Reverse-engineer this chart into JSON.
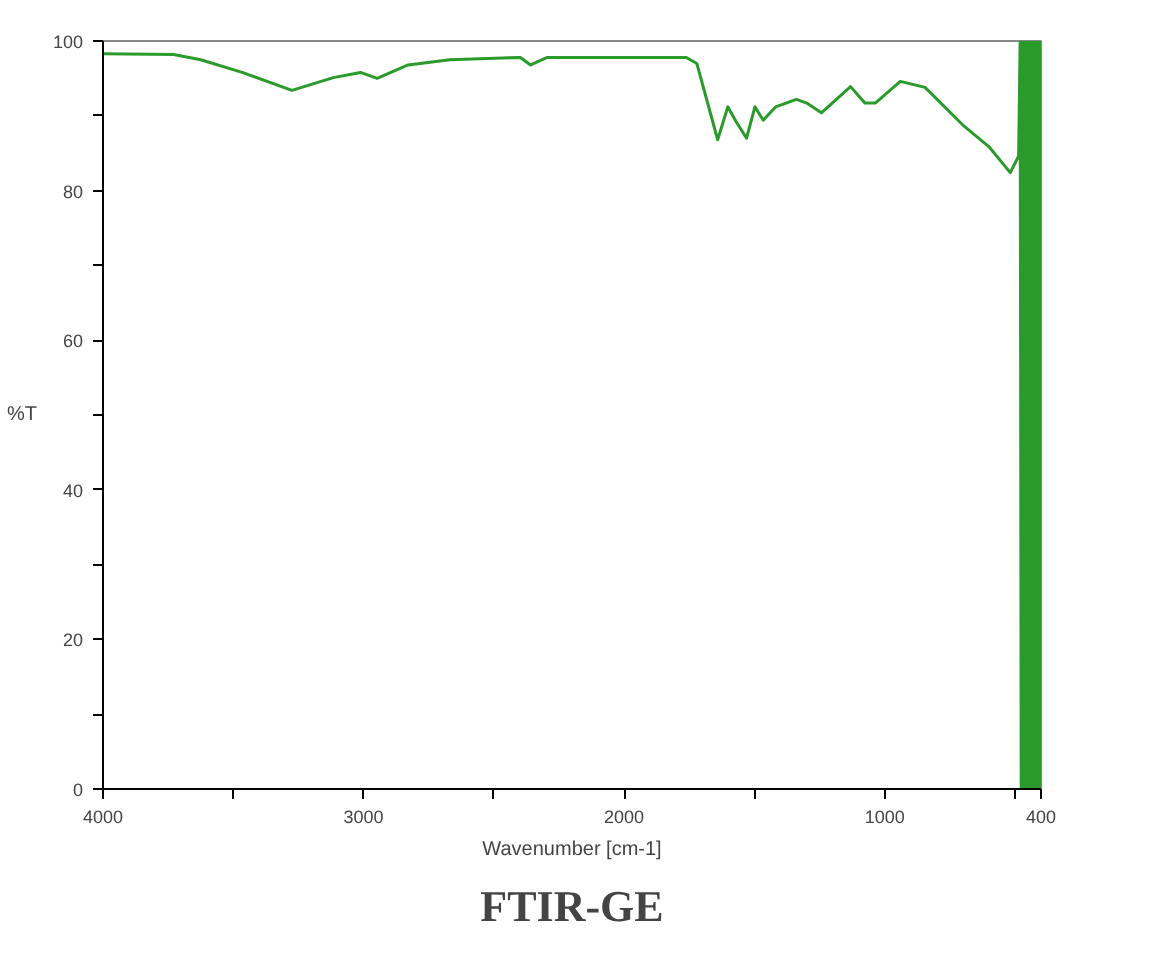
{
  "chart_data": {
    "type": "line",
    "title": "FTIR-GE",
    "xlabel": "Wavenumber [cm-1]",
    "ylabel": "%T",
    "xlim": [
      4000,
      400
    ],
    "ylim": [
      0,
      100
    ],
    "xticks": [
      4000,
      {
        "value": 3500,
        "label": null
      },
      3000,
      {
        "value": 2500,
        "label": null
      },
      2000,
      {
        "value": 1500,
        "label": null
      },
      1000,
      {
        "value": 500,
        "label": null
      },
      400
    ],
    "yticks": [
      0,
      {
        "value": 10,
        "label": null
      },
      20,
      {
        "value": 30,
        "label": null
      },
      40,
      {
        "value": 50,
        "label": null
      },
      60,
      {
        "value": 70,
        "label": null
      },
      80,
      {
        "value": 90,
        "label": null
      },
      100
    ],
    "grid": false,
    "marker": "none",
    "line_style": "solid",
    "series": [
      {
        "color": "#2a9a2a",
        "x": [
          4000,
          3729,
          3625,
          3466,
          3275,
          3116,
          3012,
          2948,
          2829,
          2669,
          2398,
          2359,
          2295,
          1761,
          1721,
          1641,
          1602,
          1570,
          1530,
          1498,
          1466,
          1418,
          1339,
          1299,
          1243,
          1131,
          1076,
          1036,
          940,
          845,
          701,
          598,
          518,
          486,
          480,
          476,
          472,
          468,
          464,
          460,
          456,
          452,
          448,
          444,
          440,
          436,
          432,
          428,
          424,
          420,
          416,
          412,
          408,
          404,
          400
        ],
        "values": [
          98.3,
          98.2,
          97.5,
          95.8,
          93.4,
          95.1,
          95.8,
          95.0,
          96.8,
          97.5,
          97.8,
          96.8,
          97.8,
          97.8,
          97.0,
          86.8,
          91.2,
          89.2,
          87.0,
          91.2,
          89.4,
          91.2,
          92.2,
          91.7,
          90.4,
          93.9,
          91.7,
          91.7,
          94.6,
          93.8,
          88.8,
          85.8,
          82.4,
          84.6,
          100,
          0,
          100,
          0,
          100,
          0,
          100,
          0,
          100,
          0,
          100,
          0,
          100,
          0,
          100,
          0,
          100,
          0,
          100,
          0,
          100
        ]
      }
    ]
  }
}
